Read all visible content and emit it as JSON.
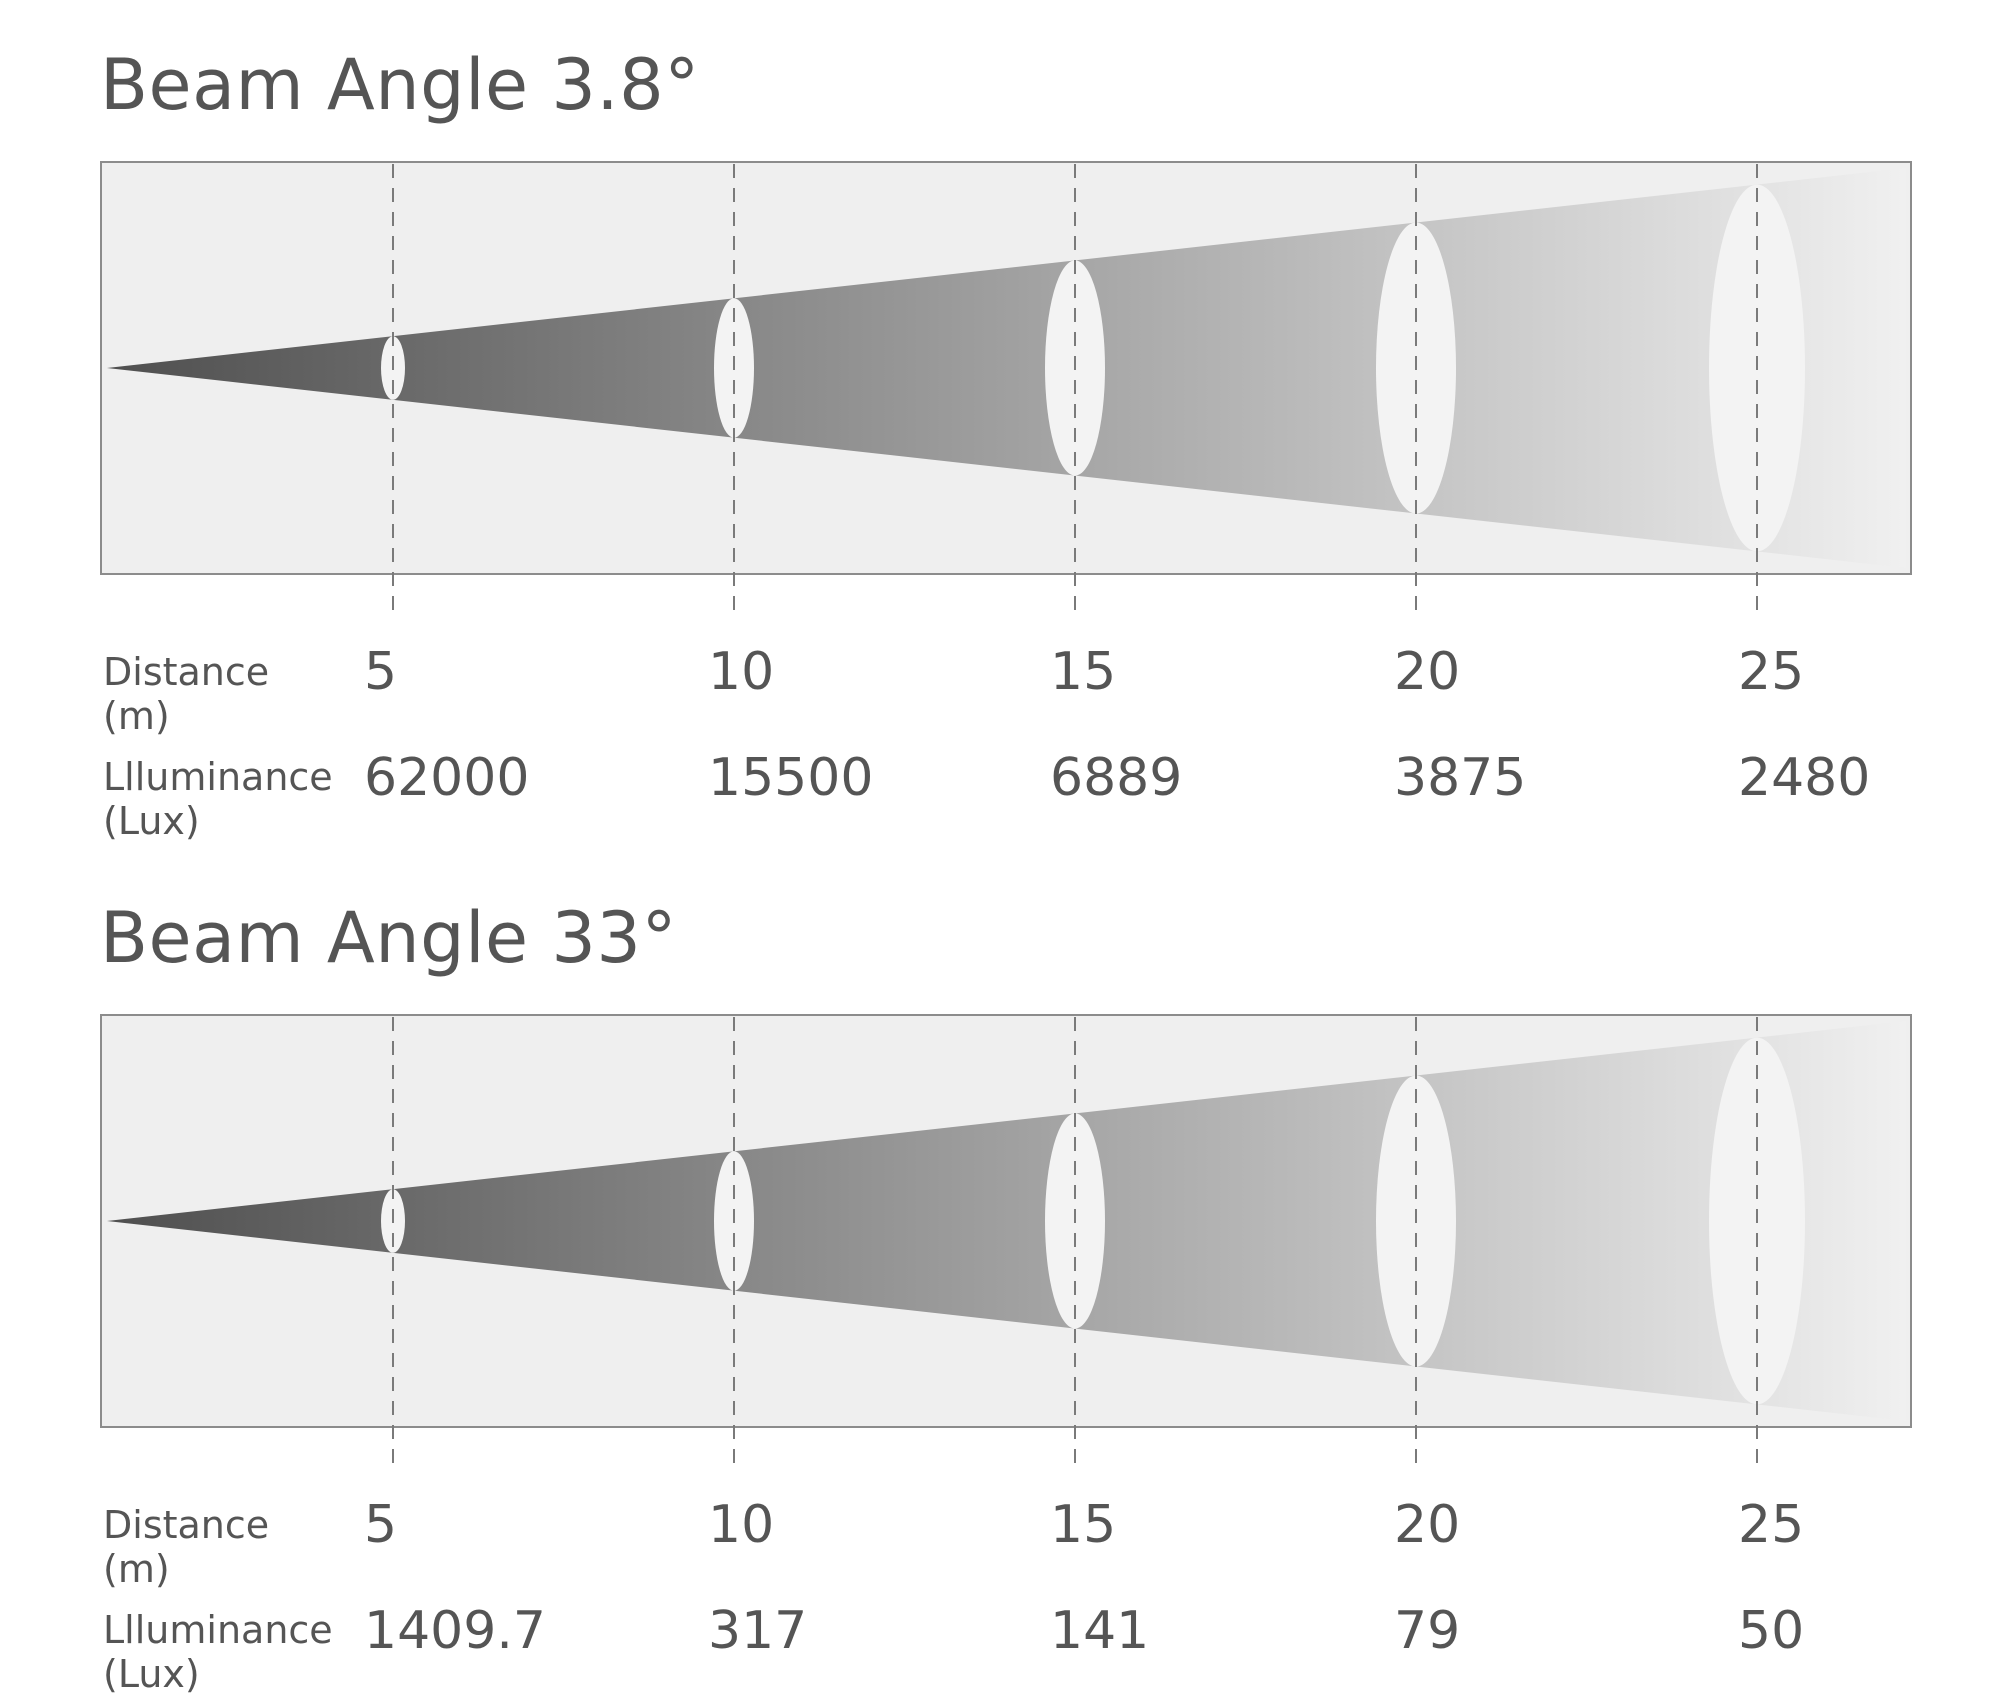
{
  "panels": [
    {
      "title": "Beam Angle 3.8°",
      "distance_label": [
        "Distance",
        "(m)"
      ],
      "lux_label": [
        "Llluminance",
        "(Lux)"
      ],
      "distances": [
        "5",
        "10",
        "15",
        "20",
        "25"
      ],
      "lux": [
        "62000",
        "15500",
        "6889",
        "3875",
        "2480"
      ]
    },
    {
      "title": "Beam Angle 33°",
      "distance_label": [
        "Distance",
        "(m)"
      ],
      "lux_label": [
        "Llluminance",
        "(Lux)"
      ],
      "distances": [
        "5",
        "10",
        "15",
        "20",
        "25"
      ],
      "lux": [
        "1409.7",
        "317",
        "141",
        "79",
        "50"
      ]
    }
  ],
  "colors": {
    "frame_bg": "#efefef",
    "frame_border": "#8c8c8c",
    "beam_dark": "#4f4f4f",
    "beam_light": "#f0f0f0",
    "spot": "#f3f3f3",
    "dashed": "#7a7a7a",
    "text": "#555555"
  },
  "chart_data": [
    {
      "type": "table",
      "title": "Beam Angle 3.8°",
      "columns": [
        "Distance (m)",
        "Llluminance (Lux)"
      ],
      "rows": [
        [
          5,
          62000
        ],
        [
          10,
          15500
        ],
        [
          15,
          6889
        ],
        [
          20,
          3875
        ],
        [
          25,
          2480
        ]
      ]
    },
    {
      "type": "table",
      "title": "Beam Angle 33°",
      "columns": [
        "Distance (m)",
        "Llluminance (Lux)"
      ],
      "rows": [
        [
          5,
          1409.7
        ],
        [
          10,
          317
        ],
        [
          15,
          141
        ],
        [
          20,
          79
        ],
        [
          25,
          50
        ]
      ]
    }
  ]
}
